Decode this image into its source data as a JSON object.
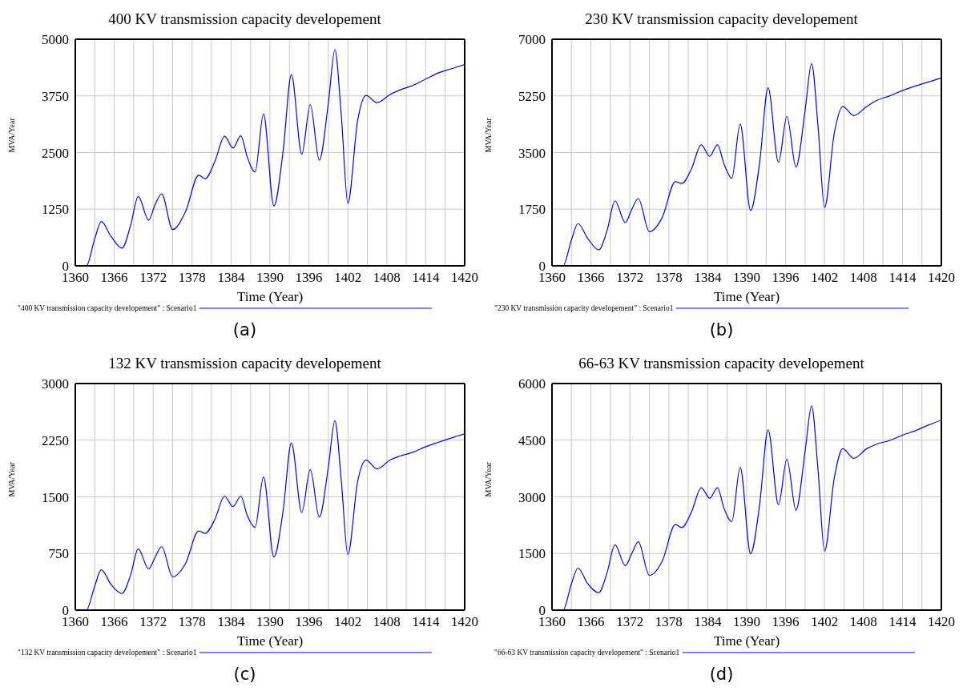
{
  "chart_data": [
    {
      "type": "line",
      "title": "400 KV transmission capacity developement",
      "xlabel": "Time (Year)",
      "ylabel": "MVA/Year",
      "x": [
        1360,
        1361.7,
        1363,
        1364,
        1365.5,
        1367.2,
        1368.5,
        1369.7,
        1371.3,
        1372.3,
        1373.3,
        1375,
        1377,
        1379,
        1380,
        1381.5,
        1383,
        1384.3,
        1385.5,
        1386.5,
        1387.7,
        1389,
        1390.6,
        1392,
        1393.3,
        1394.9,
        1396.2,
        1397.6,
        1399,
        1400,
        1401,
        1402,
        1403.5,
        1404.8,
        1406.5,
        1408.5,
        1410,
        1412,
        1414,
        1416,
        1418,
        1420
      ],
      "series": [
        {
          "name": "\"400 KV transmission capacity developement\" : Scenario1",
          "color": "#0000ff",
          "values": [
            0,
            0,
            600,
            980,
            650,
            390,
            880,
            1530,
            1010,
            1350,
            1590,
            800,
            1200,
            2000,
            1920,
            2300,
            2860,
            2600,
            2870,
            2400,
            2070,
            3350,
            1320,
            2500,
            4220,
            2460,
            3560,
            2330,
            3600,
            4770,
            3300,
            1380,
            3200,
            3760,
            3600,
            3780,
            3880,
            3980,
            4120,
            4260,
            4350,
            4440
          ]
        }
      ],
      "xlim": [
        1360,
        1420
      ],
      "xticks": [
        1360,
        {
          "value": 1363,
          "label": null
        },
        1366,
        {
          "value": 1369,
          "label": null
        },
        1372,
        {
          "value": 1375,
          "label": null
        },
        1378,
        {
          "value": 1381,
          "label": null
        },
        1384,
        {
          "value": 1387,
          "label": null
        },
        1390,
        {
          "value": 1393,
          "label": null
        },
        1396,
        {
          "value": 1399,
          "label": null
        },
        1402,
        {
          "value": 1405,
          "label": null
        },
        1408,
        {
          "value": 1411,
          "label": null
        },
        1414,
        {
          "value": 1417,
          "label": null
        },
        1420
      ],
      "ylim": [
        0,
        5000
      ],
      "yticks": [
        0,
        1250,
        2500,
        3750,
        5000
      ],
      "grid": true,
      "legend": "bottom",
      "annotations": [
        "(a)"
      ]
    },
    {
      "type": "line",
      "title": "230 KV transmission capacity developement",
      "xlabel": "Time (Year)",
      "ylabel": "MVA/Year",
      "x": [
        1360,
        1361.7,
        1363,
        1364,
        1365.5,
        1367.2,
        1368.5,
        1369.7,
        1371.3,
        1372.3,
        1373.3,
        1375,
        1377,
        1379,
        1380,
        1381.5,
        1383,
        1384.3,
        1385.5,
        1386.5,
        1387.7,
        1389,
        1390.6,
        1392,
        1393.3,
        1394.9,
        1396.2,
        1397.6,
        1399,
        1400,
        1401,
        1402,
        1403.5,
        1404.8,
        1406.5,
        1408.5,
        1410,
        1412,
        1414,
        1416,
        1418,
        1420
      ],
      "series": [
        {
          "name": "\"230 KV transmission capacity developement\" : Scenario1",
          "color": "#0000ff",
          "values": [
            0,
            0,
            800,
            1305,
            850,
            494,
            1100,
            2004,
            1333,
            1750,
            2078,
            1053,
            1500,
            2600,
            2544,
            3000,
            3737,
            3383,
            3737,
            3150,
            2703,
            4380,
            1705,
            3200,
            5499,
            3197,
            4613,
            3048,
            4800,
            6244,
            4300,
            1799,
            4100,
            4921,
            4641,
            4921,
            5107,
            5247,
            5415,
            5555,
            5680,
            5806
          ]
        }
      ],
      "xlim": [
        1360,
        1420
      ],
      "xticks": [
        1360,
        {
          "value": 1363,
          "label": null
        },
        1366,
        {
          "value": 1369,
          "label": null
        },
        1372,
        {
          "value": 1375,
          "label": null
        },
        1378,
        {
          "value": 1381,
          "label": null
        },
        1384,
        {
          "value": 1387,
          "label": null
        },
        1390,
        {
          "value": 1393,
          "label": null
        },
        1396,
        {
          "value": 1399,
          "label": null
        },
        1402,
        {
          "value": 1405,
          "label": null
        },
        1408,
        {
          "value": 1411,
          "label": null
        },
        1414,
        {
          "value": 1417,
          "label": null
        },
        1420
      ],
      "ylim": [
        0,
        7000
      ],
      "yticks": [
        0,
        1750,
        3500,
        5250,
        7000
      ],
      "grid": true,
      "legend": "bottom",
      "annotations": [
        "(b)"
      ]
    },
    {
      "type": "line",
      "title": "132 KV transmission capacity developement",
      "xlabel": "Time (Year)",
      "ylabel": "MVA/Year",
      "x": [
        1360,
        1361.7,
        1363,
        1364,
        1365.5,
        1367.2,
        1368.5,
        1369.7,
        1371.3,
        1372.3,
        1373.3,
        1375,
        1377,
        1379,
        1380,
        1381.5,
        1383,
        1384.3,
        1385.5,
        1386.5,
        1387.7,
        1389,
        1390.6,
        1392,
        1393.3,
        1394.9,
        1396.2,
        1397.6,
        1399,
        1400,
        1401,
        1402,
        1403.5,
        1404.8,
        1406.5,
        1408.5,
        1410,
        1412,
        1414,
        1416,
        1418,
        1420
      ],
      "series": [
        {
          "name": "\"132 KV transmission capacity developement\" : Scenario1",
          "color": "#0000ff",
          "values": [
            0,
            0,
            320,
            534,
            340,
            220,
            460,
            809,
            546,
            700,
            840,
            440,
            620,
            1048,
            1017,
            1200,
            1508,
            1371,
            1508,
            1250,
            1096,
            1763,
            703,
            1300,
            2215,
            1292,
            1861,
            1233,
            1900,
            2509,
            1700,
            734,
            1700,
            1987,
            1869,
            1987,
            2038,
            2089,
            2164,
            2223,
            2280,
            2333
          ]
        }
      ],
      "xlim": [
        1360,
        1420
      ],
      "xticks": [
        1360,
        {
          "value": 1363,
          "label": null
        },
        1366,
        {
          "value": 1369,
          "label": null
        },
        1372,
        {
          "value": 1375,
          "label": null
        },
        1378,
        {
          "value": 1381,
          "label": null
        },
        1384,
        {
          "value": 1387,
          "label": null
        },
        1390,
        {
          "value": 1393,
          "label": null
        },
        1396,
        {
          "value": 1399,
          "label": null
        },
        1402,
        {
          "value": 1405,
          "label": null
        },
        1408,
        {
          "value": 1411,
          "label": null
        },
        1414,
        {
          "value": 1417,
          "label": null
        },
        1420
      ],
      "ylim": [
        0,
        3000
      ],
      "yticks": [
        0,
        750,
        1500,
        2250,
        3000
      ],
      "grid": true,
      "legend": "bottom",
      "annotations": [
        "(c)"
      ]
    },
    {
      "type": "line",
      "title": "66-63 KV transmission capacity developement",
      "xlabel": "Time (Year)",
      "ylabel": "MVA/Year",
      "x": [
        1360,
        1361.7,
        1363,
        1364,
        1365.5,
        1367.2,
        1368.5,
        1369.7,
        1371.3,
        1372.3,
        1373.3,
        1375,
        1377,
        1379,
        1380,
        1381.5,
        1383,
        1384.3,
        1385.5,
        1386.5,
        1387.7,
        1389,
        1390.6,
        1392,
        1393.3,
        1394.9,
        1396.2,
        1397.6,
        1399,
        1400,
        1401,
        1402,
        1403.5,
        1404.8,
        1406.5,
        1408.5,
        1410,
        1412,
        1414,
        1416,
        1418,
        1420
      ],
      "series": [
        {
          "name": "\"66-63 KV transmission capacity developement\" : Scenario1",
          "color": "#0000ff",
          "values": [
            0,
            0,
            700,
            1113,
            700,
            461,
            1000,
            1732,
            1176,
            1500,
            1812,
            922,
            1300,
            2265,
            2185,
            2600,
            3242,
            2964,
            3242,
            2700,
            2344,
            3783,
            1494,
            2800,
            4776,
            2789,
            3997,
            2646,
            4200,
            5404,
            3700,
            1558,
            3500,
            4275,
            4021,
            4275,
            4395,
            4490,
            4633,
            4752,
            4900,
            5031
          ]
        }
      ],
      "xlim": [
        1360,
        1420
      ],
      "xticks": [
        1360,
        {
          "value": 1363,
          "label": null
        },
        1366,
        {
          "value": 1369,
          "label": null
        },
        1372,
        {
          "value": 1375,
          "label": null
        },
        1378,
        {
          "value": 1381,
          "label": null
        },
        1384,
        {
          "value": 1387,
          "label": null
        },
        1390,
        {
          "value": 1393,
          "label": null
        },
        1396,
        {
          "value": 1399,
          "label": null
        },
        1402,
        {
          "value": 1405,
          "label": null
        },
        1408,
        {
          "value": 1411,
          "label": null
        },
        1414,
        {
          "value": 1417,
          "label": null
        },
        1420
      ],
      "ylim": [
        0,
        6000
      ],
      "yticks": [
        0,
        1500,
        3000,
        4500,
        6000
      ],
      "grid": true,
      "legend": "bottom",
      "annotations": [
        "(d)"
      ]
    }
  ]
}
